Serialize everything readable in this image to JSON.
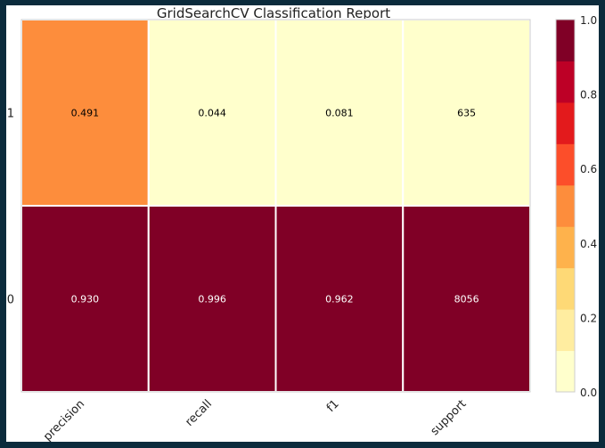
{
  "chart_data": {
    "type": "heatmap",
    "title": "GridSearchCV Classification Report",
    "xlabel": "",
    "ylabel": "",
    "columns": [
      "precision",
      "recall",
      "f1",
      "support"
    ],
    "rows": [
      "1",
      "0"
    ],
    "cells": [
      [
        "0.491",
        "0.044",
        "0.081",
        "635"
      ],
      [
        "0.930",
        "0.996",
        "0.962",
        "8056"
      ]
    ],
    "color_values": [
      [
        0.491,
        0.044,
        0.081,
        0.0
      ],
      [
        0.93,
        0.996,
        0.962,
        1.0
      ]
    ],
    "colorbar": {
      "range": [
        0.0,
        1.0
      ],
      "tick_labels": [
        "0.0",
        "0.2",
        "0.4",
        "0.6",
        "0.8",
        "1.0"
      ],
      "colormap": "YlOrRd",
      "levels": [
        "#ffffcc",
        "#ffeda0",
        "#fed976",
        "#feb24c",
        "#fd8d3c",
        "#fc4e2a",
        "#e31a1c",
        "#bd0026",
        "#800026"
      ]
    },
    "grid": false
  }
}
